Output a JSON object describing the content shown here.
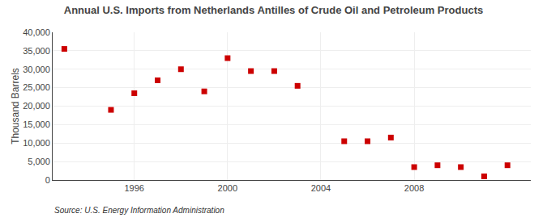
{
  "chart_data": {
    "type": "scatter",
    "title": "Annual U.S. Imports from Netherlands Antilles of Crude Oil and Petroleum Products",
    "ylabel": "Thousand Barrels",
    "annotations": [
      "Source: U.S. Energy Information Administration"
    ],
    "x": [
      1993,
      1995,
      1996,
      1997,
      1998,
      1999,
      2000,
      2001,
      2002,
      2003,
      2005,
      2006,
      2007,
      2008,
      2009,
      2010,
      2011,
      2012
    ],
    "values": [
      35500,
      19000,
      23500,
      27000,
      30000,
      24000,
      33000,
      29500,
      29500,
      25500,
      10500,
      10500,
      11500,
      3500,
      4000,
      3500,
      1000,
      4000
    ],
    "color": "#cc0000",
    "marker": "square",
    "xlim": [
      1992.5,
      2013.0
    ],
    "ylim": [
      0,
      40000
    ],
    "xticks": [
      1996,
      2000,
      2004,
      2008
    ],
    "yticks": [
      0,
      {
        "value": 5000,
        "label": "5,000"
      },
      {
        "value": 10000,
        "label": "10,000"
      },
      {
        "value": 15000,
        "label": "15,000"
      },
      {
        "value": 20000,
        "label": "20,000"
      },
      {
        "value": 25000,
        "label": "25,000"
      },
      {
        "value": 30000,
        "label": "30,000"
      },
      {
        "value": 35000,
        "label": "35,000"
      },
      {
        "value": 40000,
        "label": "40,000"
      }
    ],
    "grid": true
  }
}
